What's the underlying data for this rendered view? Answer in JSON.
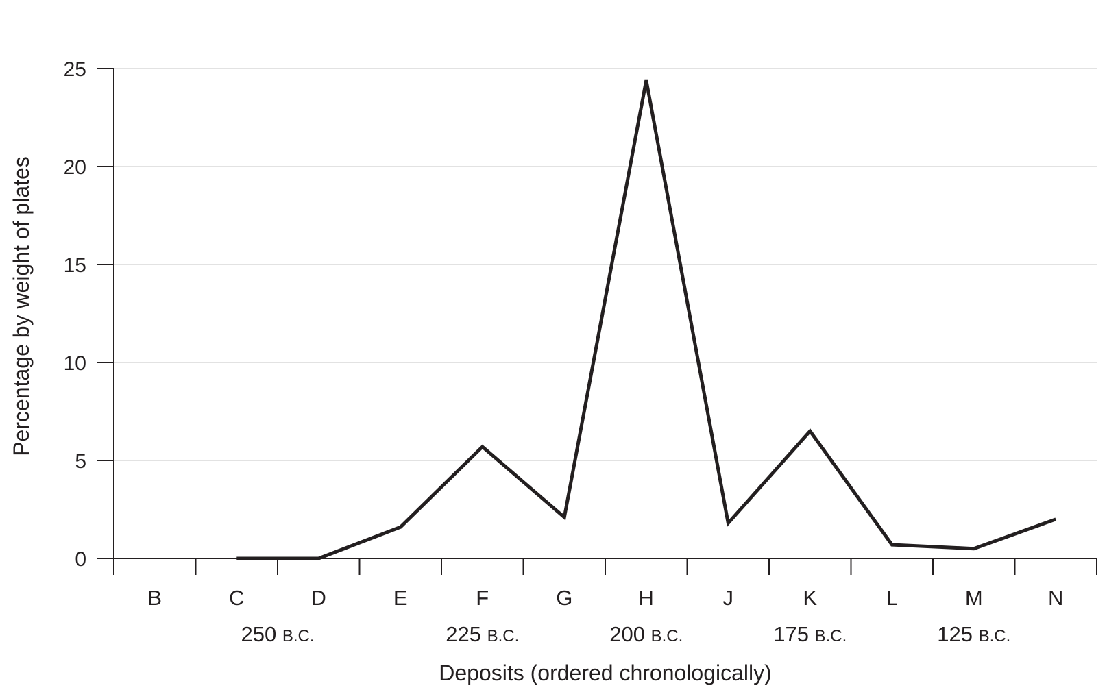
{
  "chart_data": {
    "type": "line",
    "categories": [
      "B",
      "C",
      "D",
      "E",
      "F",
      "G",
      "H",
      "J",
      "K",
      "L",
      "M",
      "N"
    ],
    "series": [
      {
        "values": [
          null,
          0,
          0,
          1.6,
          5.7,
          2.1,
          24.4,
          1.8,
          6.5,
          0.7,
          0.5,
          2.0
        ]
      }
    ],
    "ylim": [
      0,
      25
    ],
    "yticks": [
      0,
      5,
      10,
      15,
      20,
      25
    ],
    "grid": true,
    "legend": "none",
    "xlabel": "Deposits (ordered chronologically)",
    "ylabel": "Percentage by weight of plates",
    "date_annotations": [
      {
        "between": [
          "C",
          "D"
        ],
        "num": "250",
        "era": "B.C."
      },
      {
        "between": [
          "F",
          "F"
        ],
        "num": "225",
        "era": "B.C."
      },
      {
        "between": [
          "H",
          "H"
        ],
        "num": "200",
        "era": "B.C."
      },
      {
        "between": [
          "K",
          "K"
        ],
        "num": "175",
        "era": "B.C."
      },
      {
        "between": [
          "M",
          "M"
        ],
        "num": "125",
        "era": "B.C."
      }
    ],
    "line_color": "#231f20",
    "grid_color": "#d9d9d9"
  }
}
